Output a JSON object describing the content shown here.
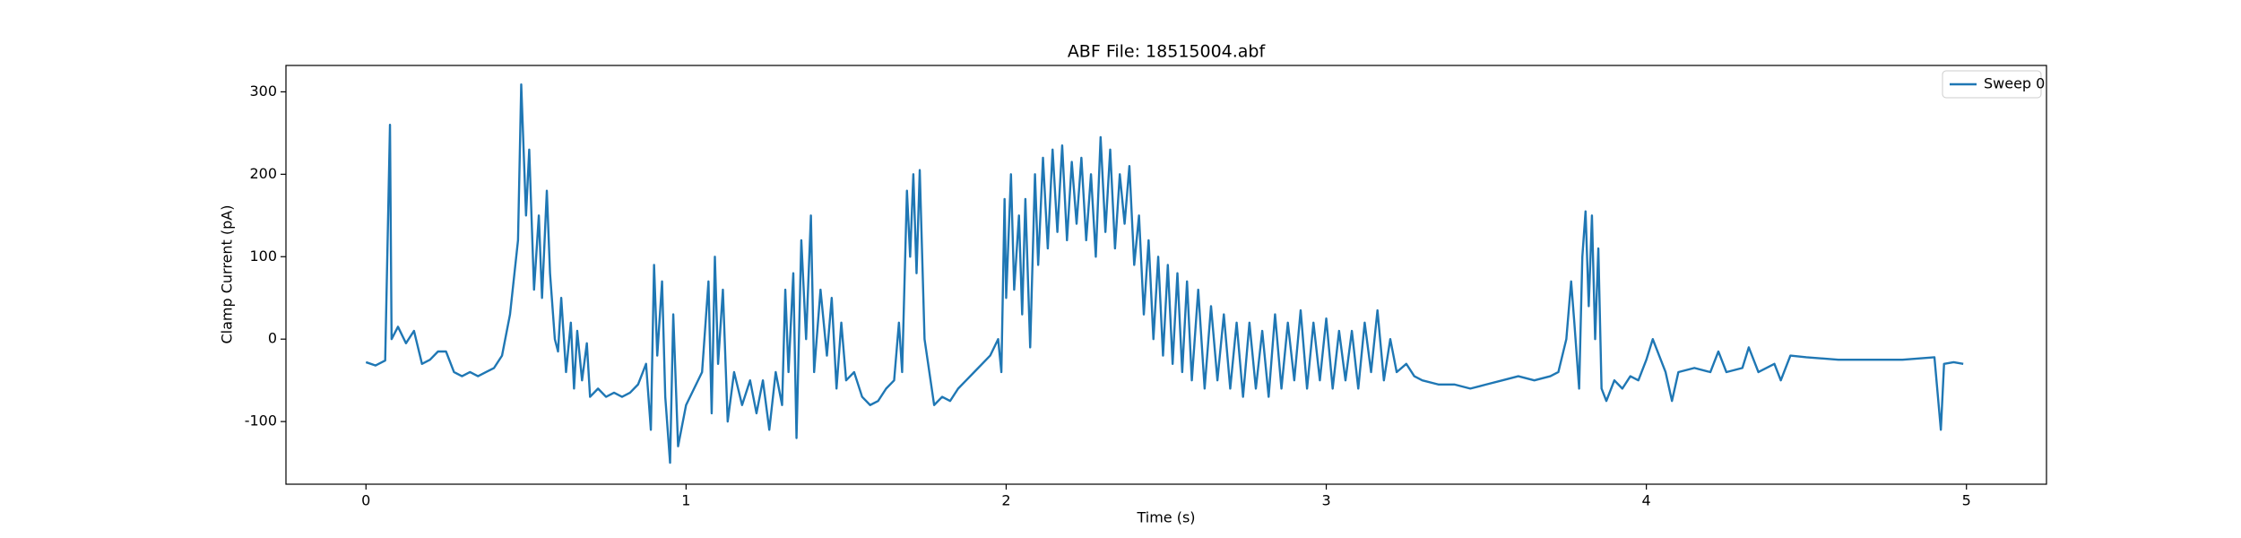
{
  "chart_data": {
    "type": "line",
    "title": "ABF File: 18515004.abf",
    "xlabel": "Time (s)",
    "ylabel": "Clamp Current (pA)",
    "xlim": [
      -0.25,
      5.25
    ],
    "ylim": [
      -176,
      332
    ],
    "xticks": [
      0,
      1,
      2,
      3,
      4,
      5
    ],
    "yticks": [
      -100,
      0,
      100,
      200,
      300
    ],
    "legend": "upper right",
    "x": [
      0,
      0.03,
      0.06,
      0.075,
      0.08,
      0.1,
      0.125,
      0.15,
      0.175,
      0.2,
      0.225,
      0.25,
      0.275,
      0.3,
      0.325,
      0.35,
      0.375,
      0.4,
      0.425,
      0.45,
      0.475,
      0.485,
      0.5,
      0.51,
      0.525,
      0.54,
      0.55,
      0.565,
      0.575,
      0.59,
      0.6,
      0.61,
      0.625,
      0.64,
      0.65,
      0.66,
      0.675,
      0.69,
      0.7,
      0.725,
      0.75,
      0.775,
      0.8,
      0.825,
      0.85,
      0.875,
      0.89,
      0.9,
      0.91,
      0.925,
      0.935,
      0.95,
      0.96,
      0.975,
      1.0,
      1.025,
      1.05,
      1.07,
      1.08,
      1.09,
      1.1,
      1.115,
      1.13,
      1.15,
      1.175,
      1.2,
      1.22,
      1.24,
      1.26,
      1.28,
      1.3,
      1.31,
      1.32,
      1.335,
      1.345,
      1.36,
      1.375,
      1.39,
      1.4,
      1.42,
      1.44,
      1.455,
      1.47,
      1.485,
      1.5,
      1.525,
      1.55,
      1.575,
      1.6,
      1.625,
      1.65,
      1.665,
      1.675,
      1.69,
      1.7,
      1.71,
      1.72,
      1.73,
      1.745,
      1.76,
      1.775,
      1.8,
      1.825,
      1.85,
      1.875,
      1.9,
      1.925,
      1.95,
      1.975,
      1.985,
      1.995,
      2.0,
      2.015,
      2.025,
      2.04,
      2.05,
      2.06,
      2.075,
      2.09,
      2.1,
      2.115,
      2.13,
      2.145,
      2.16,
      2.175,
      2.19,
      2.205,
      2.22,
      2.235,
      2.25,
      2.265,
      2.28,
      2.295,
      2.31,
      2.325,
      2.34,
      2.355,
      2.37,
      2.385,
      2.4,
      2.415,
      2.43,
      2.445,
      2.46,
      2.475,
      2.49,
      2.505,
      2.52,
      2.535,
      2.55,
      2.565,
      2.58,
      2.6,
      2.62,
      2.64,
      2.66,
      2.68,
      2.7,
      2.72,
      2.74,
      2.76,
      2.78,
      2.8,
      2.82,
      2.84,
      2.86,
      2.88,
      2.9,
      2.92,
      2.94,
      2.96,
      2.98,
      3.0,
      3.02,
      3.04,
      3.06,
      3.08,
      3.1,
      3.12,
      3.14,
      3.16,
      3.18,
      3.2,
      3.22,
      3.25,
      3.275,
      3.3,
      3.35,
      3.4,
      3.45,
      3.5,
      3.55,
      3.6,
      3.65,
      3.7,
      3.725,
      3.75,
      3.765,
      3.775,
      3.79,
      3.8,
      3.81,
      3.82,
      3.83,
      3.84,
      3.85,
      3.86,
      3.875,
      3.9,
      3.925,
      3.95,
      3.975,
      4.0,
      4.02,
      4.04,
      4.06,
      4.08,
      4.1,
      4.15,
      4.2,
      4.225,
      4.25,
      4.3,
      4.32,
      4.35,
      4.4,
      4.42,
      4.45,
      4.5,
      4.6,
      4.7,
      4.8,
      4.9,
      4.92,
      4.93,
      4.96,
      4.99
    ],
    "series": [
      {
        "name": "Sweep 0",
        "color": "#1f77b4",
        "values": [
          -28,
          -32,
          -26,
          260,
          0,
          15,
          -5,
          10,
          -30,
          -25,
          -15,
          -15,
          -40,
          -45,
          -40,
          -45,
          -40,
          -35,
          -20,
          30,
          120,
          309,
          150,
          230,
          60,
          150,
          50,
          180,
          80,
          0,
          -15,
          50,
          -40,
          20,
          -60,
          10,
          -50,
          -5,
          -70,
          -60,
          -70,
          -65,
          -70,
          -65,
          -55,
          -30,
          -110,
          90,
          -20,
          70,
          -70,
          -150,
          30,
          -130,
          -80,
          -60,
          -40,
          70,
          -90,
          100,
          -30,
          60,
          -100,
          -40,
          -80,
          -50,
          -90,
          -50,
          -110,
          -40,
          -80,
          60,
          -40,
          80,
          -120,
          120,
          0,
          150,
          -40,
          60,
          -20,
          50,
          -60,
          20,
          -50,
          -40,
          -70,
          -80,
          -75,
          -60,
          -50,
          20,
          -40,
          180,
          100,
          200,
          80,
          205,
          0,
          -40,
          -80,
          -70,
          -75,
          -60,
          -50,
          -40,
          -30,
          -20,
          0,
          -40,
          170,
          50,
          200,
          60,
          150,
          30,
          170,
          -10,
          200,
          90,
          220,
          110,
          230,
          130,
          235,
          120,
          215,
          140,
          220,
          120,
          200,
          100,
          245,
          130,
          230,
          110,
          200,
          140,
          210,
          90,
          150,
          30,
          120,
          0,
          100,
          -20,
          90,
          -30,
          80,
          -40,
          70,
          -50,
          60,
          -60,
          40,
          -50,
          30,
          -60,
          20,
          -70,
          20,
          -60,
          10,
          -70,
          30,
          -60,
          20,
          -50,
          35,
          -60,
          20,
          -50,
          25,
          -60,
          10,
          -50,
          10,
          -60,
          20,
          -40,
          35,
          -50,
          0,
          -40,
          -30,
          -45,
          -50,
          -55,
          -55,
          -60,
          -55,
          -50,
          -45,
          -50,
          -45,
          -40,
          0,
          70,
          20,
          -60,
          100,
          155,
          40,
          150,
          0,
          110,
          -60,
          -75,
          -50,
          -60,
          -45,
          -50,
          -25,
          0,
          -20,
          -40,
          -75,
          -40,
          -35,
          -40,
          -15,
          -40,
          -35,
          -10,
          -40,
          -30,
          -50,
          -20,
          -22,
          -25,
          -25,
          -25,
          -22,
          -110,
          -30,
          -28,
          -30
        ]
      }
    ]
  }
}
